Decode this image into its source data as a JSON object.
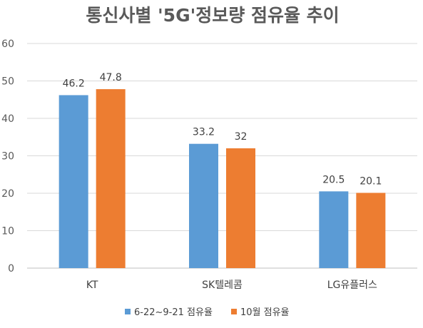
{
  "chart_data": {
    "type": "bar",
    "title": "통신사별 '5G'정보량 점유율 추이",
    "categories": [
      "KT",
      "SK텔레콤",
      "LG유플러스"
    ],
    "series": [
      {
        "name": "6-22~9-21 점유율",
        "values": [
          46.2,
          33.2,
          20.5
        ],
        "color": "#5b9bd5"
      },
      {
        "name": "10월 점유율",
        "values": [
          47.8,
          32,
          20.1
        ],
        "color": "#ed7d31"
      }
    ],
    "ylim": [
      0,
      60
    ],
    "yticks": [
      0,
      10,
      20,
      30,
      40,
      50,
      60
    ],
    "grid": true,
    "legend": "bottom"
  }
}
